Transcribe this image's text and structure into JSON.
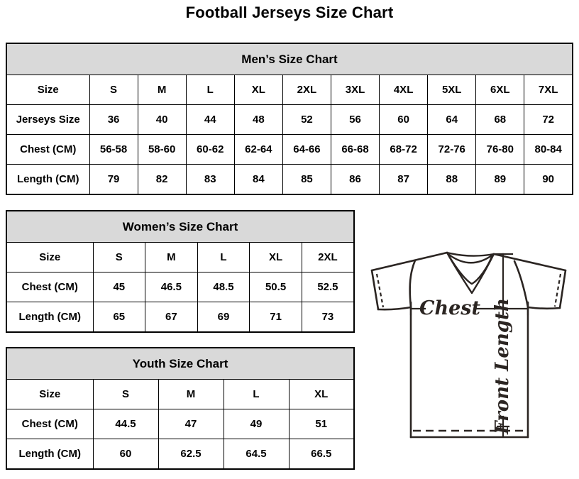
{
  "page_title": "Football Jerseys Size Chart",
  "tables": {
    "men": {
      "title": "Men’s Size Chart",
      "rows": [
        [
          "Size",
          "S",
          "M",
          "L",
          "XL",
          "2XL",
          "3XL",
          "4XL",
          "5XL",
          "6XL",
          "7XL"
        ],
        [
          "Jerseys Size",
          "36",
          "40",
          "44",
          "48",
          "52",
          "56",
          "60",
          "64",
          "68",
          "72"
        ],
        [
          "Chest (CM)",
          "56-58",
          "58-60",
          "60-62",
          "62-64",
          "64-66",
          "66-68",
          "68-72",
          "72-76",
          "76-80",
          "80-84"
        ],
        [
          "Length (CM)",
          "79",
          "82",
          "83",
          "84",
          "85",
          "86",
          "87",
          "88",
          "89",
          "90"
        ]
      ]
    },
    "women": {
      "title": "Women’s Size Chart",
      "rows": [
        [
          "Size",
          "S",
          "M",
          "L",
          "XL",
          "2XL"
        ],
        [
          "Chest (CM)",
          "45",
          "46.5",
          "48.5",
          "50.5",
          "52.5"
        ],
        [
          "Length (CM)",
          "65",
          "67",
          "69",
          "71",
          "73"
        ]
      ]
    },
    "youth": {
      "title": "Youth Size Chart",
      "rows": [
        [
          "Size",
          "S",
          "M",
          "L",
          "XL"
        ],
        [
          "Chest (CM)",
          "44.5",
          "47",
          "49",
          "51"
        ],
        [
          "Length (CM)",
          "60",
          "62.5",
          "64.5",
          "66.5"
        ]
      ]
    }
  },
  "diagram": {
    "chest_label": "Chest",
    "front_length_label": "Front Length"
  },
  "colors": {
    "header_bg": "#d9d9d9",
    "table_border": "#000000",
    "text": "#000000",
    "diagram_stroke": "#2b2522"
  }
}
